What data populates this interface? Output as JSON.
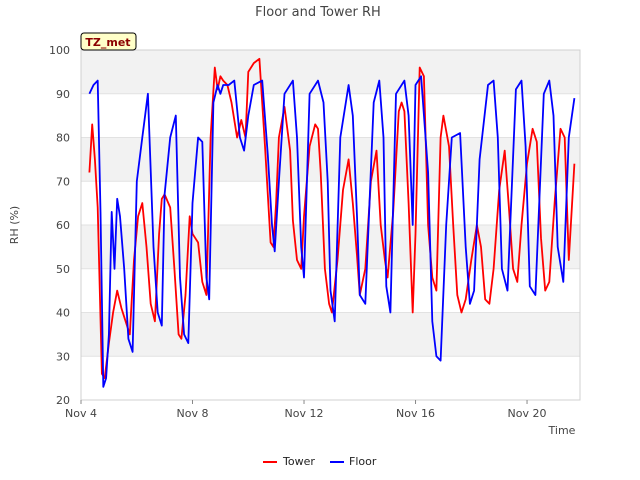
{
  "chart_data": {
    "type": "line",
    "title": "Floor and Tower RH",
    "xlabel": "Time",
    "ylabel": "RH (%)",
    "badge": "TZ_met",
    "xlim": [
      4,
      21.9
    ],
    "ylim": [
      20,
      100
    ],
    "x_ticks": [
      4,
      8,
      12,
      16,
      20
    ],
    "x_tick_labels": [
      "Nov 4",
      "Nov 8",
      "Nov 12",
      "Nov 16",
      "Nov 20"
    ],
    "y_ticks": [
      20,
      30,
      40,
      50,
      60,
      70,
      80,
      90,
      100
    ],
    "grid": "horizontal bands",
    "legend_position": "bottom-center",
    "series": [
      {
        "name": "Tower",
        "color": "#ff0000",
        "x": [
          4.3,
          4.4,
          4.5,
          4.6,
          4.75,
          4.85,
          5.0,
          5.15,
          5.3,
          5.45,
          5.6,
          5.75,
          5.9,
          6.05,
          6.2,
          6.35,
          6.5,
          6.65,
          6.8,
          6.9,
          7.0,
          7.2,
          7.35,
          7.5,
          7.6,
          7.75,
          7.9,
          8.0,
          8.2,
          8.35,
          8.5,
          8.65,
          8.8,
          8.9,
          9.0,
          9.1,
          9.25,
          9.4,
          9.6,
          9.75,
          9.9,
          10.0,
          10.2,
          10.4,
          10.6,
          10.8,
          10.9,
          11.0,
          11.1,
          11.3,
          11.5,
          11.6,
          11.75,
          11.9,
          12.0,
          12.2,
          12.4,
          12.5,
          12.6,
          12.75,
          12.9,
          13.0,
          13.2,
          13.4,
          13.6,
          13.75,
          13.9,
          14.0,
          14.2,
          14.4,
          14.6,
          14.75,
          14.9,
          15.0,
          15.2,
          15.4,
          15.5,
          15.6,
          15.75,
          15.9,
          16.0,
          16.15,
          16.3,
          16.45,
          16.6,
          16.75,
          16.9,
          17.0,
          17.2,
          17.35,
          17.5,
          17.65,
          17.8,
          18.0,
          18.2,
          18.35,
          18.5,
          18.65,
          18.8,
          19.0,
          19.2,
          19.35,
          19.5,
          19.65,
          19.8,
          20.0,
          20.2,
          20.35,
          20.5,
          20.65,
          20.8,
          21.0,
          21.2,
          21.35
        ],
        "values": [
          72,
          83,
          75,
          64,
          26,
          25,
          33,
          40,
          45,
          41,
          38,
          35,
          52,
          62,
          65,
          55,
          42,
          38,
          58,
          66,
          67,
          64,
          50,
          35,
          34,
          44,
          62,
          58,
          56,
          47,
          44,
          80,
          96,
          91,
          94,
          93,
          92,
          88,
          80,
          84,
          80,
          95,
          97,
          98,
          78,
          56,
          55,
          65,
          80,
          87,
          77,
          61,
          52,
          50,
          62,
          78,
          83,
          82,
          72,
          50,
          42,
          40,
          52,
          68,
          75,
          65,
          53,
          44,
          50,
          70,
          77,
          60,
          52,
          48,
          63,
          86,
          88,
          86,
          65,
          40,
          58,
          96,
          94,
          60,
          48,
          45,
          80,
          85,
          78,
          60,
          44,
          40,
          43,
          52,
          60,
          55,
          43,
          42,
          50,
          68,
          77,
          64,
          50,
          47,
          60,
          74,
          82,
          79,
          57,
          45,
          47,
          66,
          82,
          80
        ],
        "x_tail": [
          21.5,
          21.7
        ],
        "values_tail": [
          52,
          74
        ]
      },
      {
        "name": "Floor",
        "color": "#0000ff",
        "x": [
          4.3,
          4.45,
          4.6,
          4.7,
          4.8,
          4.9,
          5.0,
          5.1,
          5.2,
          5.3,
          5.4,
          5.55,
          5.7,
          5.85,
          6.0,
          6.2,
          6.4,
          6.6,
          6.75,
          6.9,
          7.0,
          7.2,
          7.4,
          7.55,
          7.7,
          7.85,
          8.0,
          8.2,
          8.35,
          8.5,
          8.6,
          8.75,
          8.9,
          9.0,
          9.1,
          9.3,
          9.5,
          9.7,
          9.85,
          10.0,
          10.2,
          10.5,
          10.7,
          10.85,
          10.95,
          11.1,
          11.3,
          11.6,
          11.75,
          11.9,
          12.0,
          12.2,
          12.5,
          12.7,
          12.85,
          12.95,
          13.1,
          13.3,
          13.6,
          13.75,
          13.9,
          14.0,
          14.2,
          14.5,
          14.7,
          14.85,
          14.95,
          15.1,
          15.3,
          15.6,
          15.75,
          15.9,
          16.0,
          16.2,
          16.45,
          16.6,
          16.75,
          16.9,
          17.1,
          17.3,
          17.6,
          17.8,
          17.95,
          18.1,
          18.3,
          18.6,
          18.8,
          18.95,
          19.1,
          19.3,
          19.6,
          19.8,
          19.95,
          20.1,
          20.3,
          20.6,
          20.8,
          20.95,
          21.1,
          21.3,
          21.5,
          21.7
        ],
        "values": [
          90,
          92,
          93,
          63,
          23,
          25,
          35,
          63,
          50,
          66,
          62,
          50,
          34,
          31,
          70,
          80,
          90,
          55,
          40,
          37,
          67,
          80,
          85,
          48,
          35,
          33,
          65,
          80,
          79,
          48,
          43,
          88,
          92,
          90,
          92,
          92,
          93,
          80,
          77,
          85,
          92,
          93,
          76,
          60,
          54,
          70,
          90,
          93,
          80,
          55,
          48,
          90,
          93,
          88,
          70,
          45,
          38,
          80,
          92,
          85,
          62,
          44,
          42,
          88,
          93,
          80,
          46,
          40,
          90,
          93,
          85,
          60,
          92,
          94,
          72,
          38,
          30,
          29,
          60,
          80,
          81,
          55,
          42,
          45,
          75,
          92,
          93,
          80,
          50,
          45,
          91,
          93,
          78,
          46,
          44,
          90,
          93,
          85,
          55,
          47,
          80,
          89
        ]
      }
    ]
  }
}
